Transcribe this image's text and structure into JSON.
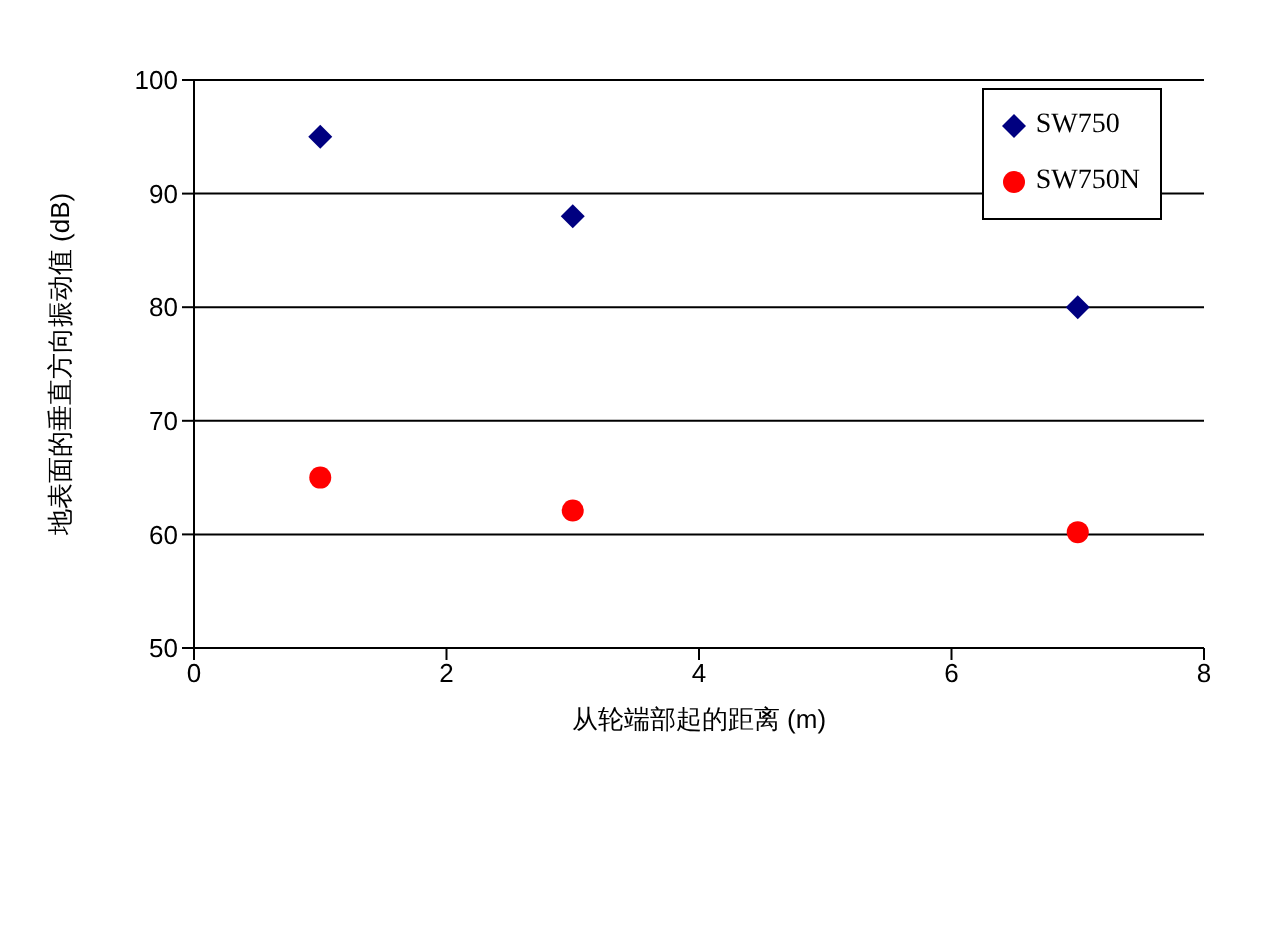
{
  "chart_data": {
    "type": "scatter",
    "xlabel": "从轮端部起的距离 (m)",
    "ylabel": "地表面的垂直方向振动值 (dB)",
    "x": [
      1,
      3,
      7
    ],
    "series": [
      {
        "name": "SW750",
        "color": "#000080",
        "marker": "diamond",
        "values": [
          95,
          88,
          80
        ]
      },
      {
        "name": "SW750N",
        "color": "#ff0000",
        "marker": "circle",
        "values": [
          65,
          62.1,
          60.2
        ]
      }
    ],
    "xlim": [
      0,
      8
    ],
    "xticks": [
      0,
      2,
      4,
      6,
      8
    ],
    "ylim": [
      50,
      100
    ],
    "yticks": [
      50,
      60,
      70,
      80,
      90,
      100
    ],
    "grid": "y",
    "legend": "top right"
  }
}
